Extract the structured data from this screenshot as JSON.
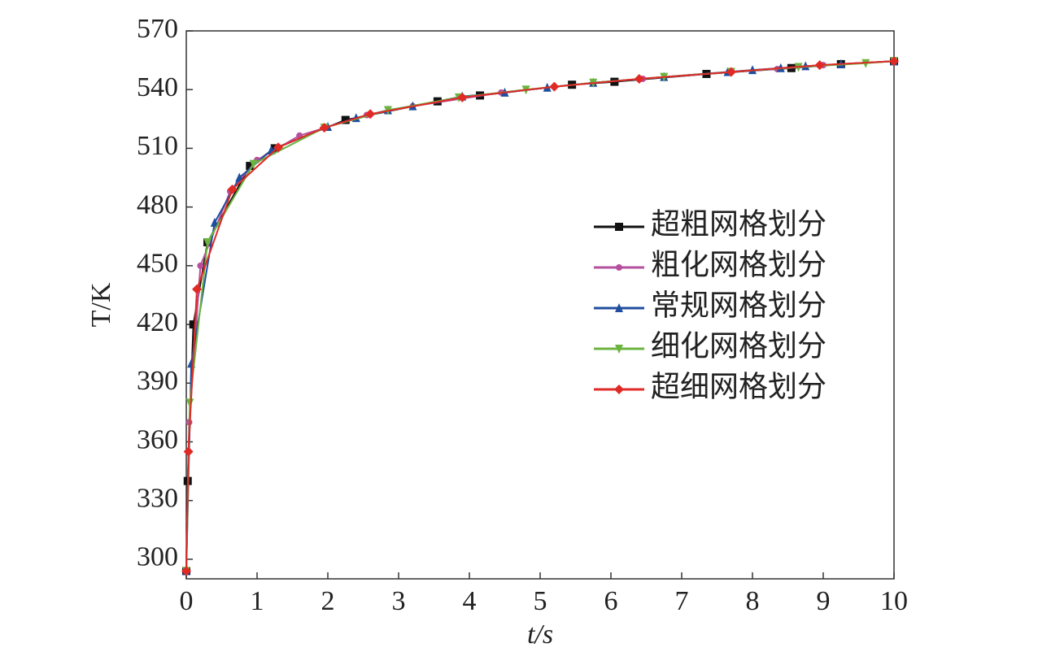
{
  "chart_data": {
    "type": "line",
    "xlabel": "t/s",
    "ylabel": "T/K",
    "xlim": [
      0,
      10
    ],
    "xticks": [
      0,
      1,
      2,
      3,
      4,
      5,
      6,
      7,
      8,
      9,
      10
    ],
    "ylim": [
      290,
      570
    ],
    "yticks": [
      300,
      330,
      360,
      390,
      420,
      450,
      480,
      510,
      540,
      570
    ],
    "legend": "right",
    "series": [
      {
        "name": "超粗网格划分",
        "color": "#111111",
        "marker": "square",
        "x": [
          0,
          0.02,
          0.1,
          0.3,
          0.9,
          1.25,
          2.25,
          3.55,
          4.15,
          5.45,
          6.05,
          7.35,
          8.55,
          9.25,
          10
        ],
        "values": [
          294,
          340,
          420,
          462,
          501,
          510,
          524.5,
          534,
          537,
          542.5,
          544,
          548,
          551,
          553,
          554.5
        ]
      },
      {
        "name": "粗化网格划分",
        "color": "#b5509e",
        "marker": "circle",
        "x": [
          0,
          0.04,
          0.2,
          0.62,
          1.0,
          1.6,
          2.55,
          3.2,
          4.45,
          5.75,
          6.45,
          7.7,
          8.35,
          9.0,
          10
        ],
        "values": [
          294,
          370,
          450,
          488,
          504,
          516.5,
          527,
          531.5,
          538.5,
          543.5,
          545.5,
          549,
          550.5,
          552.5,
          554.5
        ]
      },
      {
        "name": "常规网格划分",
        "color": "#1f4e9c",
        "marker": "triangle",
        "x": [
          0,
          0.07,
          0.4,
          0.75,
          1.2,
          2.0,
          2.4,
          2.85,
          3.2,
          3.9,
          4.5,
          5.1,
          5.75,
          6.75,
          7.65,
          8.0,
          8.4,
          8.75,
          9.25,
          10
        ],
        "values": [
          294,
          400,
          472,
          495,
          509,
          521,
          525.5,
          529.5,
          531.5,
          536.5,
          538.5,
          541,
          543.5,
          546.5,
          549,
          550,
          551,
          552,
          553,
          554.5
        ]
      },
      {
        "name": "细化网格划分",
        "color": "#6cb33f",
        "marker": "triangle-down",
        "x": [
          0,
          0.05,
          0.3,
          0.95,
          1.95,
          2.85,
          3.85,
          4.8,
          5.75,
          6.75,
          7.7,
          8.65,
          9.6,
          10
        ],
        "values": [
          294,
          380,
          462,
          502,
          520.5,
          529.5,
          536,
          540,
          543.5,
          546.5,
          549,
          551.5,
          553.5,
          554.5
        ]
      },
      {
        "name": "超细网格划分",
        "color": "#e02a26",
        "marker": "diamond",
        "x": [
          0,
          0.03,
          0.15,
          0.65,
          1.3,
          1.95,
          2.6,
          3.9,
          5.2,
          6.4,
          7.7,
          8.95,
          10
        ],
        "values": [
          294,
          355,
          438,
          489,
          510.5,
          520.5,
          527.5,
          536,
          541.5,
          545.5,
          549,
          552.5,
          554.5
        ]
      }
    ]
  }
}
